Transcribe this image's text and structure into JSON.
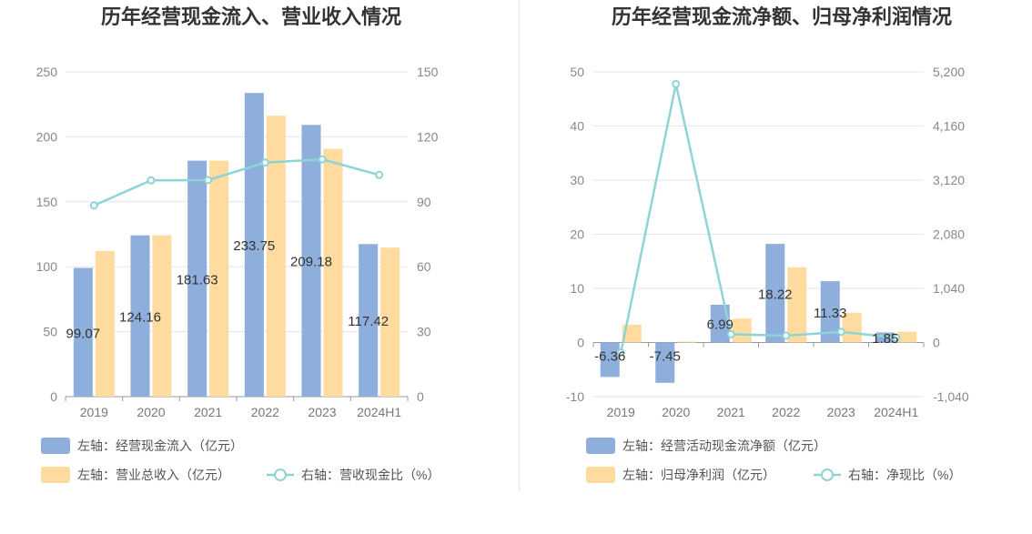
{
  "chart_data": [
    {
      "type": "bar",
      "title": "历年经营现金流入、营业收入情况",
      "categories": [
        "2019",
        "2020",
        "2021",
        "2022",
        "2023",
        "2024H1"
      ],
      "ylim_left": [
        0,
        250
      ],
      "yticks_left": [
        0,
        50,
        100,
        150,
        200,
        250
      ],
      "ylim_right": [
        0,
        150
      ],
      "yticks_right": [
        0,
        30,
        60,
        90,
        120,
        150
      ],
      "grid": true,
      "legend_position": "bottom-left",
      "series": [
        {
          "name": "左轴：经营现金流入（亿元）",
          "type": "bar",
          "axis": "left",
          "color": "#8eaedb",
          "values": [
            99.07,
            124.16,
            181.63,
            233.75,
            209.18,
            117.42
          ],
          "labels_shown": true
        },
        {
          "name": "左轴：营业总收入（亿元）",
          "type": "bar",
          "axis": "left",
          "color": "#ffdba0",
          "values": [
            112.2,
            124.3,
            181.6,
            216.2,
            190.8,
            114.7
          ],
          "labels_shown": false
        },
        {
          "name": "右轴：营收现金比（%）",
          "type": "line",
          "axis": "right",
          "color": "#8ed4d6",
          "values": [
            88.3,
            99.9,
            100.0,
            108.1,
            109.6,
            102.4
          ],
          "labels_shown": false
        }
      ]
    },
    {
      "type": "bar",
      "title": "历年经营现金流净额、归母净利润情况",
      "categories": [
        "2019",
        "2020",
        "2021",
        "2022",
        "2023",
        "2024H1"
      ],
      "ylim_left": [
        -10,
        50
      ],
      "yticks_left": [
        -10,
        0,
        10,
        20,
        30,
        40,
        50
      ],
      "ylim_right": [
        -1040,
        5200
      ],
      "yticks_right": [
        -1040,
        0,
        1040,
        2080,
        3120,
        4160,
        5200
      ],
      "yticks_right_labels": [
        "-1,040",
        "0",
        "1,040",
        "2,080",
        "3,120",
        "4,160",
        "5,200"
      ],
      "grid": true,
      "legend_position": "bottom-left",
      "series": [
        {
          "name": "左轴：经营活动现金流净额（亿元）",
          "type": "bar",
          "axis": "left",
          "color": "#8eaedb",
          "values": [
            -6.36,
            -7.45,
            6.99,
            18.22,
            11.33,
            1.85
          ],
          "labels_shown": true
        },
        {
          "name": "左轴：归母净利润（亿元）",
          "type": "bar",
          "axis": "left",
          "color": "#ffdba0",
          "values": [
            3.3,
            0.15,
            4.4,
            13.9,
            5.5,
            2.0
          ],
          "labels_shown": false
        },
        {
          "name": "右轴：净现比（%）",
          "type": "line",
          "axis": "right",
          "color": "#8ed4d6",
          "values": [
            -193,
            4967,
            159,
            131,
            206,
            92
          ],
          "labels_shown": false
        }
      ]
    }
  ]
}
